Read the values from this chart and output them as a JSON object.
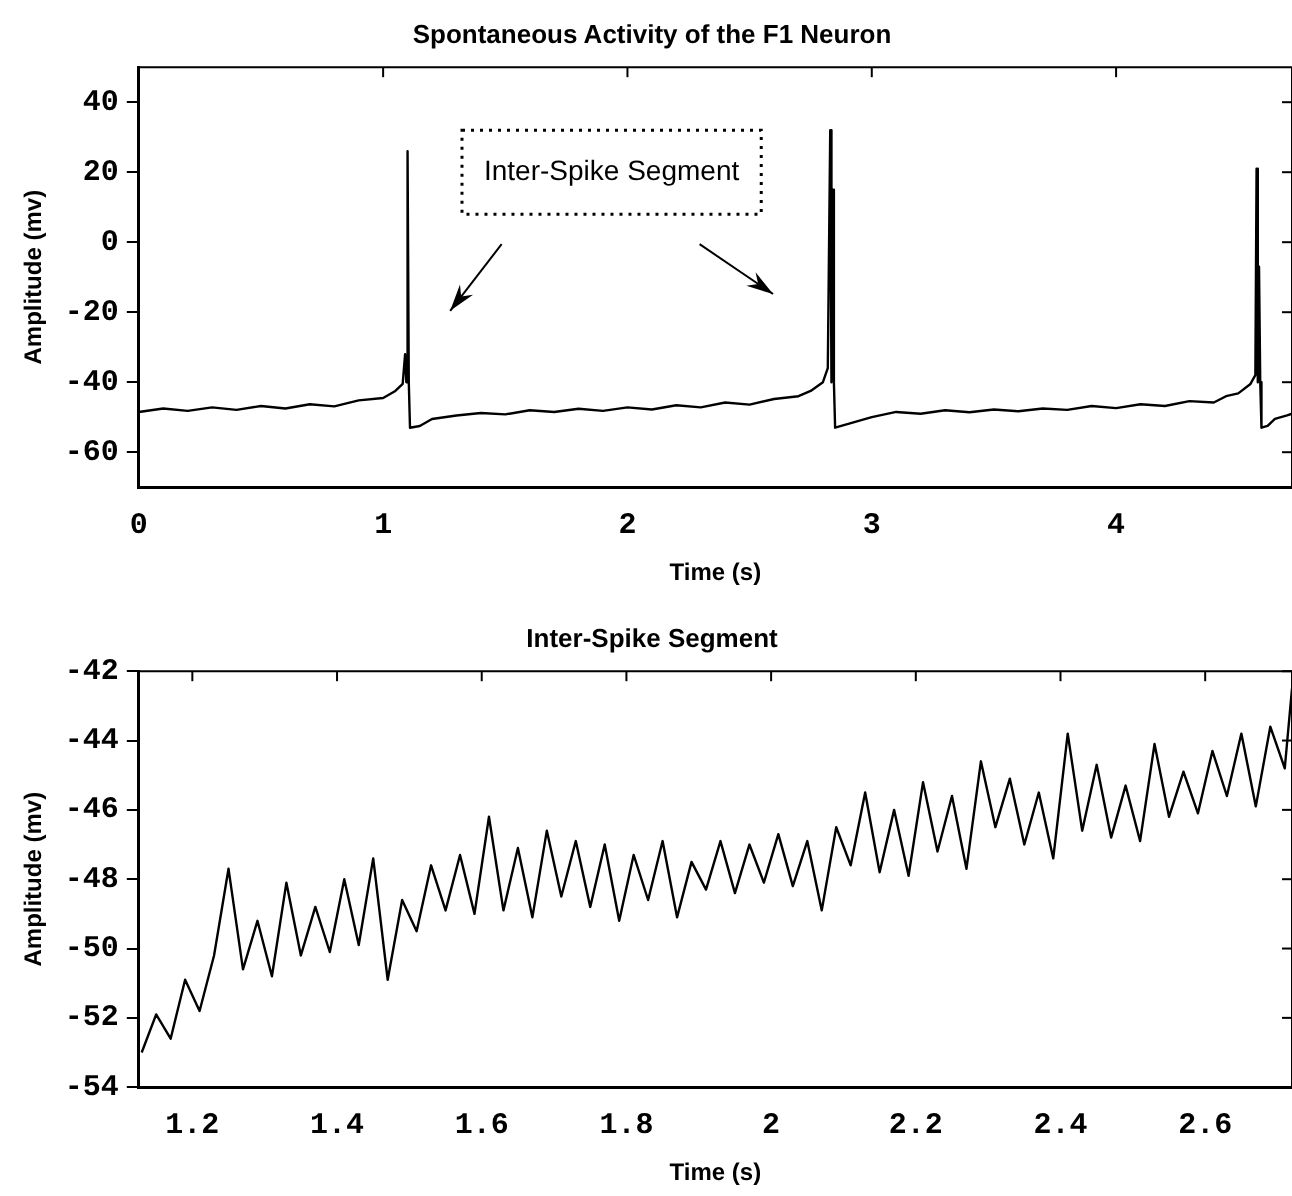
{
  "chart_data": [
    {
      "type": "line",
      "title": "Spontaneous Activity of the F1 Neuron",
      "xlabel": "Time (s)",
      "ylabel": "Amplitude (mv)",
      "grid": false,
      "legend": false,
      "marker": "none",
      "line_style": "solid",
      "xlim": [
        0,
        4.72
      ],
      "xticks": [
        0,
        1,
        2,
        3,
        4
      ],
      "ylim": [
        -70,
        50
      ],
      "yticks": [
        -60,
        -40,
        -20,
        0,
        20,
        40
      ],
      "annotations": [
        "Inter-Spike Segment"
      ],
      "series": [
        {
          "color": "#000000",
          "x": [
            0,
            0.1,
            0.2,
            0.3,
            0.4,
            0.5,
            0.6,
            0.7,
            0.8,
            0.9,
            1.0,
            1.05,
            1.08,
            1.09,
            1.095,
            1.1,
            1.105,
            1.11,
            1.15,
            1.2,
            1.3,
            1.4,
            1.5,
            1.6,
            1.7,
            1.8,
            1.9,
            2.0,
            2.1,
            2.2,
            2.3,
            2.4,
            2.5,
            2.6,
            2.7,
            2.75,
            2.8,
            2.82,
            2.83,
            2.835,
            2.84,
            2.845,
            2.85,
            2.9,
            3.0,
            3.1,
            3.2,
            3.3,
            3.4,
            3.5,
            3.6,
            3.7,
            3.8,
            3.9,
            4.0,
            4.1,
            4.2,
            4.3,
            4.4,
            4.45,
            4.5,
            4.55,
            4.57,
            4.575,
            4.58,
            4.585,
            4.59,
            4.595,
            4.62,
            4.65,
            4.7,
            4.72
          ],
          "values": [
            -48.5,
            -47.5,
            -48.2,
            -47.2,
            -47.9,
            -46.8,
            -47.5,
            -46.3,
            -46.9,
            -45.2,
            -44.5,
            -42.5,
            -40.5,
            -32,
            -40,
            26,
            -40,
            -53,
            -52.5,
            -50.5,
            -49.5,
            -48.8,
            -49.2,
            -48,
            -48.5,
            -47.6,
            -48.2,
            -47.2,
            -47.8,
            -46.6,
            -47.2,
            -45.8,
            -46.4,
            -44.8,
            -44,
            -42.5,
            -40,
            -36,
            32,
            -40,
            15,
            -40,
            -53,
            -52,
            -50,
            -48.5,
            -49,
            -48,
            -48.6,
            -47.8,
            -48.3,
            -47.5,
            -47.9,
            -46.8,
            -47.4,
            -46.3,
            -46.8,
            -45.4,
            -45.8,
            -44,
            -43.2,
            -40.5,
            -38,
            21,
            -40,
            -7,
            -40,
            -53,
            -52.5,
            -50.5,
            -49.5,
            -49
          ]
        }
      ]
    },
    {
      "type": "line",
      "title": "Inter-Spike Segment",
      "xlabel": "Time (s)",
      "ylabel": "Amplitude (mv)",
      "grid": false,
      "legend": false,
      "marker": "none",
      "line_style": "solid",
      "xlim": [
        1.126,
        2.72
      ],
      "xticks": [
        {
          "value": 1.2,
          "label": "1.2"
        },
        {
          "value": 1.4,
          "label": "1.4"
        },
        {
          "value": 1.6,
          "label": "1.6"
        },
        {
          "value": 1.8,
          "label": "1.8"
        },
        2,
        {
          "value": 2.2,
          "label": "2.2"
        },
        {
          "value": 2.4,
          "label": "2.4"
        },
        {
          "value": 2.6,
          "label": "2.6"
        }
      ],
      "ylim": [
        -54,
        -42
      ],
      "yticks": [
        -54,
        -52,
        -50,
        -48,
        -46,
        -44,
        -42
      ],
      "series": [
        {
          "color": "#000000",
          "x": [
            1.13,
            1.15,
            1.17,
            1.19,
            1.21,
            1.23,
            1.25,
            1.27,
            1.29,
            1.31,
            1.33,
            1.35,
            1.37,
            1.39,
            1.41,
            1.43,
            1.45,
            1.47,
            1.49,
            1.51,
            1.53,
            1.55,
            1.57,
            1.59,
            1.61,
            1.63,
            1.65,
            1.67,
            1.69,
            1.71,
            1.73,
            1.75,
            1.77,
            1.79,
            1.81,
            1.83,
            1.85,
            1.87,
            1.89,
            1.91,
            1.93,
            1.95,
            1.97,
            1.99,
            2.01,
            2.03,
            2.05,
            2.07,
            2.09,
            2.11,
            2.13,
            2.15,
            2.17,
            2.19,
            2.21,
            2.23,
            2.25,
            2.27,
            2.29,
            2.31,
            2.33,
            2.35,
            2.37,
            2.39,
            2.41,
            2.43,
            2.45,
            2.47,
            2.49,
            2.51,
            2.53,
            2.55,
            2.57,
            2.59,
            2.61,
            2.63,
            2.65,
            2.67,
            2.69,
            2.71,
            2.72
          ],
          "values": [
            -53.0,
            -51.9,
            -52.6,
            -50.9,
            -51.8,
            -50.2,
            -47.7,
            -50.6,
            -49.2,
            -50.8,
            -48.1,
            -50.2,
            -48.8,
            -50.1,
            -48.0,
            -49.9,
            -47.4,
            -50.9,
            -48.6,
            -49.5,
            -47.6,
            -48.9,
            -47.3,
            -49.0,
            -46.2,
            -48.9,
            -47.1,
            -49.1,
            -46.6,
            -48.5,
            -46.9,
            -48.8,
            -47.0,
            -49.2,
            -47.3,
            -48.6,
            -46.9,
            -49.1,
            -47.5,
            -48.3,
            -46.9,
            -48.4,
            -47.0,
            -48.1,
            -46.7,
            -48.2,
            -46.9,
            -48.9,
            -46.5,
            -47.6,
            -45.5,
            -47.8,
            -46.0,
            -47.9,
            -45.2,
            -47.2,
            -45.6,
            -47.7,
            -44.6,
            -46.5,
            -45.1,
            -47.0,
            -45.5,
            -47.4,
            -43.8,
            -46.6,
            -44.7,
            -46.8,
            -45.3,
            -46.9,
            -44.1,
            -46.2,
            -44.9,
            -46.1,
            -44.3,
            -45.6,
            -43.8,
            -45.9,
            -43.6,
            -44.8,
            -42.5
          ]
        }
      ]
    }
  ]
}
